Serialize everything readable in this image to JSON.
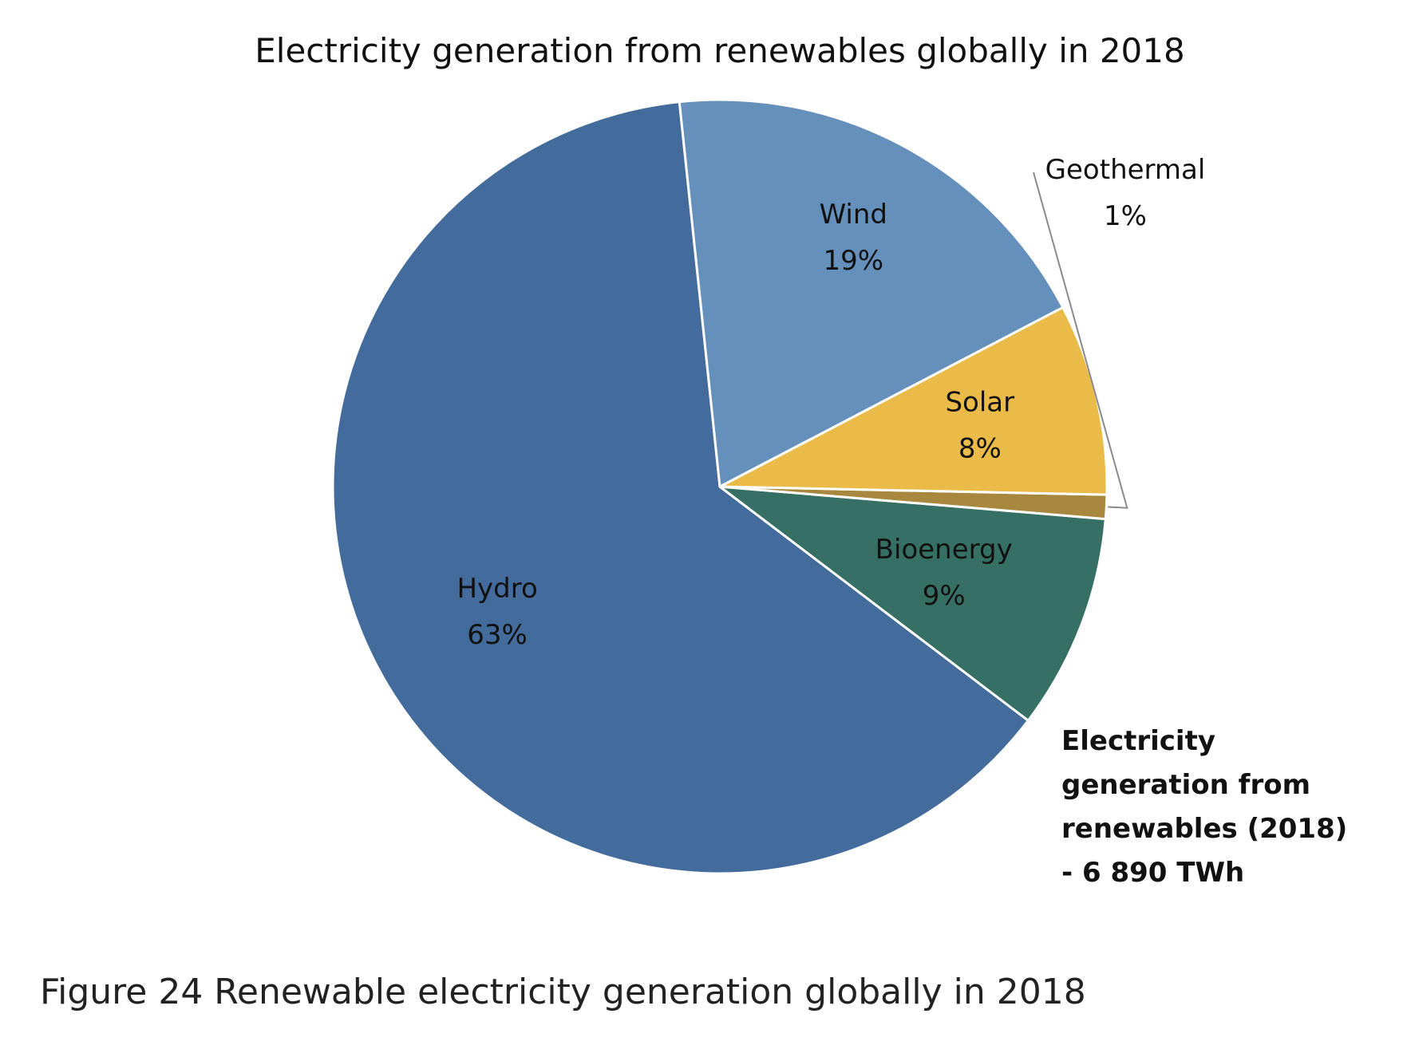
{
  "chart_data": {
    "type": "pie",
    "title": "Electricity generation from renewables globally in 2018",
    "categories": [
      "Hydro",
      "Bioenergy",
      "Geothermal",
      "Solar",
      "Wind"
    ],
    "values": [
      63,
      9,
      1,
      8,
      19
    ],
    "value_labels": [
      "63%",
      "9%",
      "1%",
      "8%",
      "19%"
    ],
    "colors": [
      "#436b9c",
      "#367064",
      "#a8873e",
      "#ebbb4a",
      "#6690bc"
    ],
    "unit": "%",
    "legend": "none",
    "total_note": [
      "Electricity",
      "generation from",
      "renewables (2018)",
      "- 6 890 TWh"
    ]
  },
  "caption": "Figure 24 Renewable electricity generation globally in 2018"
}
